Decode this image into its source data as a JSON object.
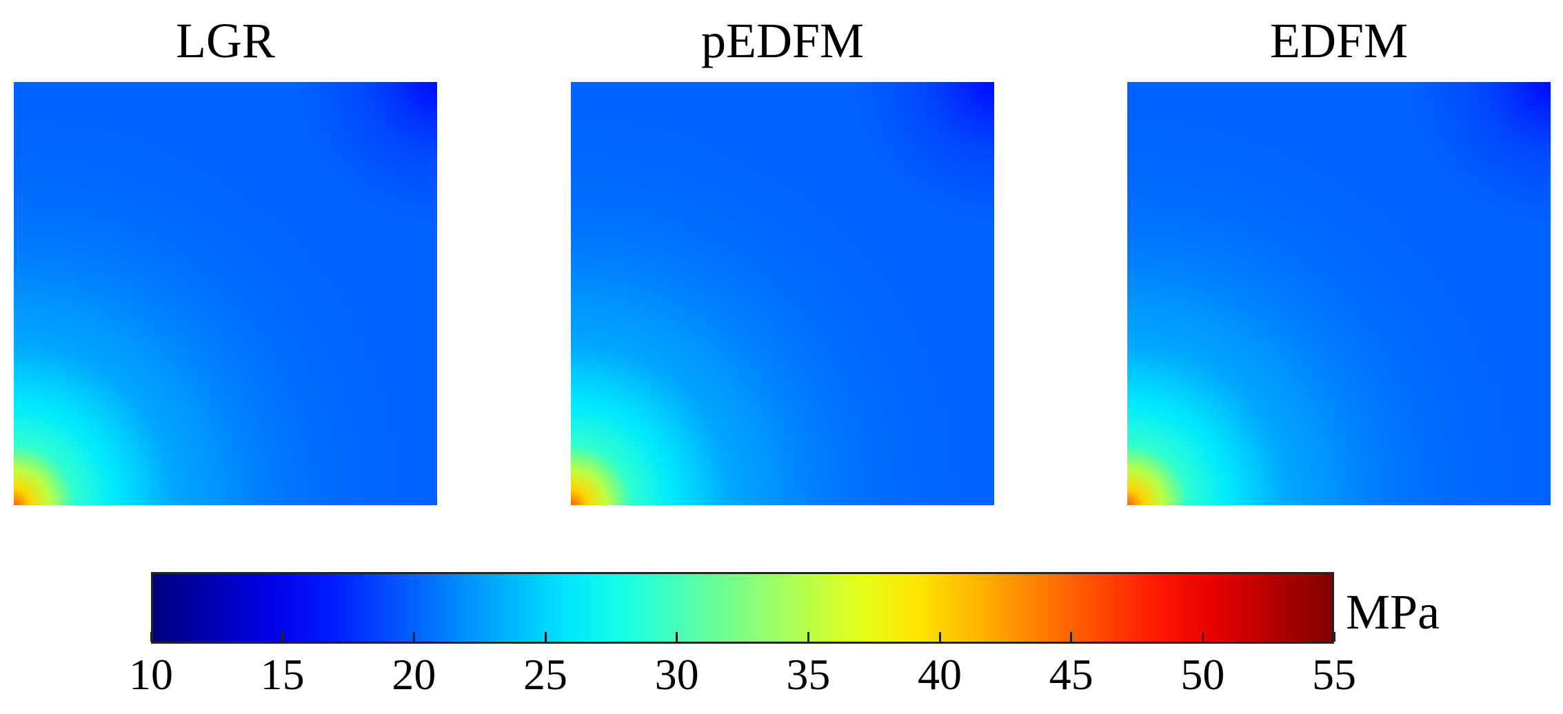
{
  "chart_data": {
    "type": "heatmap",
    "panels": [
      {
        "title": "LGR"
      },
      {
        "title": "pEDFM"
      },
      {
        "title": "EDFM"
      }
    ],
    "colorbar": {
      "colormap": "jet",
      "min": 10,
      "max": 55,
      "ticks": [
        10,
        15,
        20,
        25,
        30,
        35,
        40,
        45,
        50,
        55
      ],
      "unit": "MPa"
    },
    "field_description_values": {
      "background_pressure": 20,
      "top_right_corner_pressure": 16,
      "bottom_left_corner_pressure": 45
    }
  }
}
